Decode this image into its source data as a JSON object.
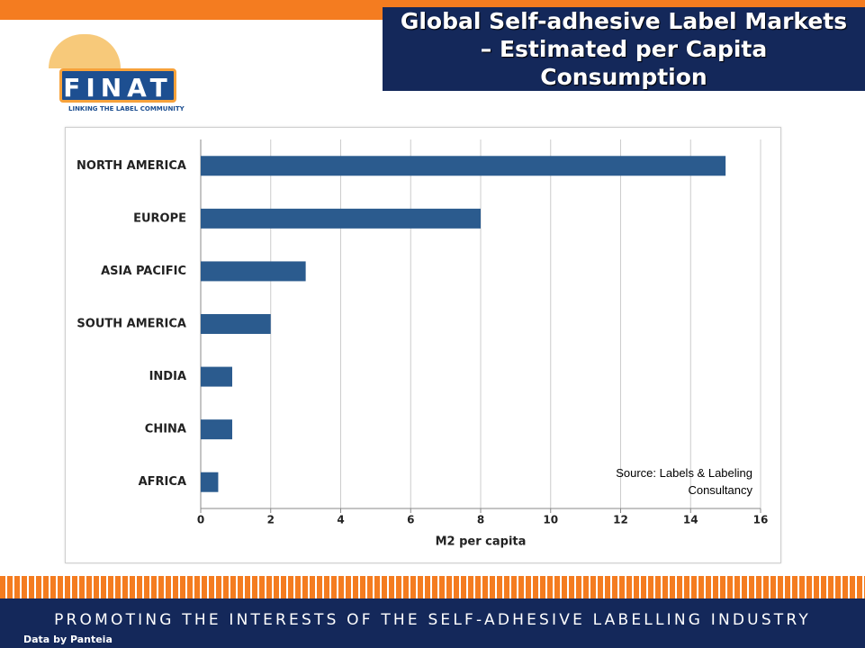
{
  "chart_data": {
    "type": "bar",
    "orientation": "horizontal",
    "title": "Global Self-adhesive Label Markets – Estimated per Capita Consumption",
    "categories": [
      "NORTH AMERICA",
      "EUROPE",
      "ASIA PACIFIC",
      "SOUTH AMERICA",
      "INDIA",
      "CHINA",
      "AFRICA"
    ],
    "values": [
      15,
      8,
      3,
      2,
      0.9,
      0.9,
      0.5
    ],
    "color": "#2b5b8e",
    "xlabel": "M2 per capita",
    "xlim": [
      0,
      16
    ],
    "xticks": [
      0,
      2,
      4,
      6,
      8,
      10,
      12,
      14,
      16
    ],
    "grid": true,
    "annotation": "Source: Labels & Labeling Consultancy"
  },
  "slide": {
    "logo": "FINAT",
    "logo_tagline": "LINKING THE LABEL COMMUNITY",
    "footer": "PROMOTING THE INTERESTS OF THE SELF-ADHESIVE LABELLING INDUSTRY",
    "credit": "Data by Panteia"
  }
}
